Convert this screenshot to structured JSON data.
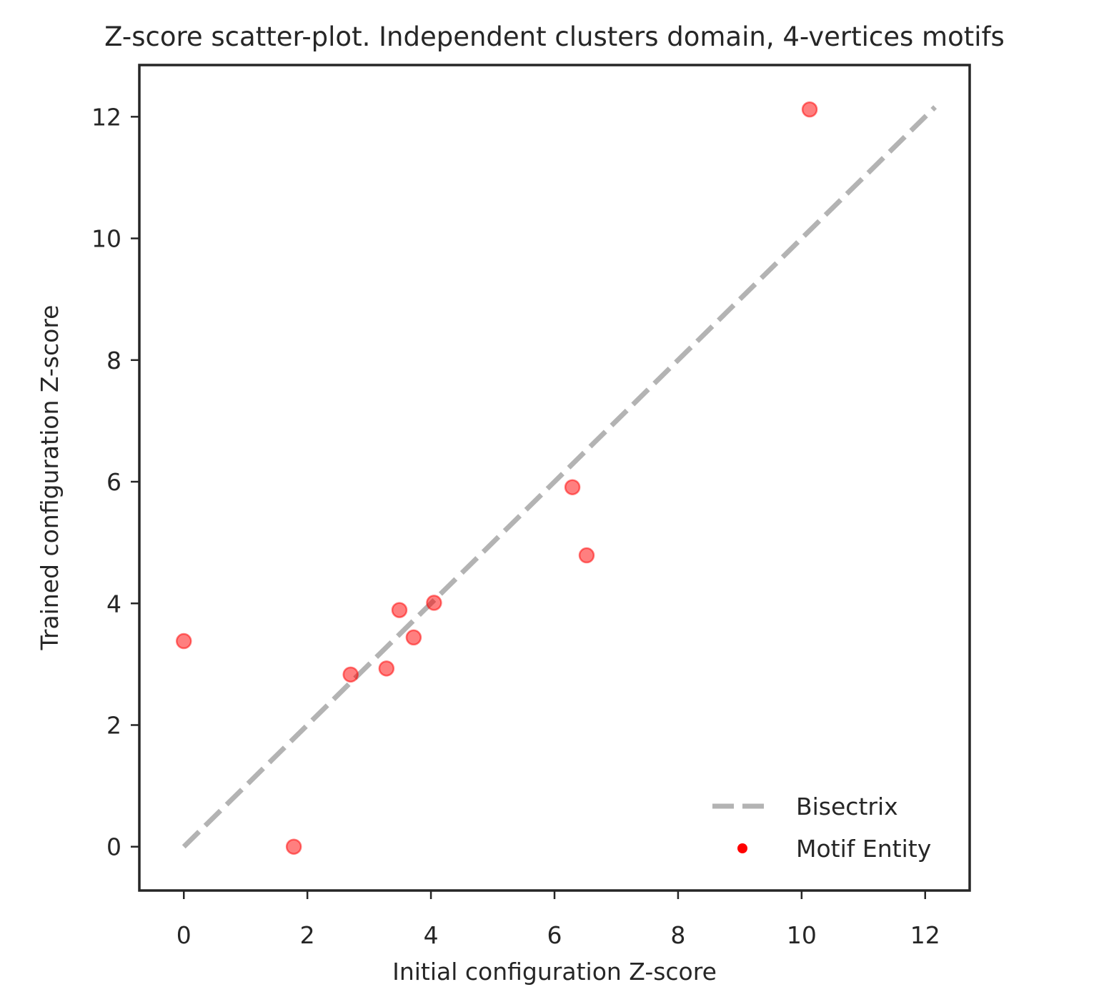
{
  "chart_data": {
    "type": "scatter",
    "title": "Z-score scatter-plot. Independent clusters domain, 4-vertices motifs",
    "xlabel": "Initial configuration Z-score",
    "ylabel": "Trained configuration Z-score",
    "xlim": [
      -0.72,
      12.72
    ],
    "ylim": [
      -0.72,
      12.85
    ],
    "x_ticks": [
      0,
      2,
      4,
      6,
      8,
      10,
      12
    ],
    "y_ticks": [
      0,
      2,
      4,
      6,
      8,
      10,
      12
    ],
    "x_tick_labels": [
      "0",
      "2",
      "4",
      "6",
      "8",
      "10",
      "12"
    ],
    "y_tick_labels": [
      "0",
      "2",
      "4",
      "6",
      "8",
      "10",
      "12"
    ],
    "grid": false,
    "legend_position": "bottom-right",
    "bisectrix": {
      "name": "Bisectrix",
      "x": [
        0,
        12.16
      ],
      "y": [
        0,
        12.16
      ],
      "color": "#b3b3b3",
      "style": "dashed"
    },
    "series": [
      {
        "name": "Motif Entity",
        "color": "#ff0000",
        "x": [
          0.0,
          1.78,
          2.7,
          3.28,
          3.49,
          3.72,
          4.05,
          6.29,
          6.52,
          10.13
        ],
        "y": [
          3.38,
          0.0,
          2.83,
          2.93,
          3.89,
          3.44,
          4.01,
          5.91,
          4.79,
          12.12
        ]
      }
    ]
  }
}
